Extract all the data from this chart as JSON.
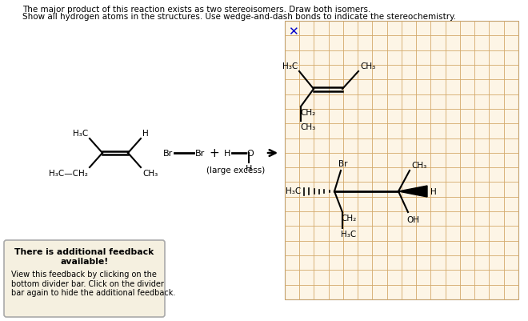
{
  "title_line1": "The major product of this reaction exists as two stereoisomers. Draw both isomers.",
  "title_line2": "Show all hydrogen atoms in the structures. Use wedge-and-dash bonds to indicate the stereochemistry.",
  "bg_color": "#ffffff",
  "grid_color": "#d4a96a",
  "grid_bg": "#fdf5e6",
  "feedback_box": {
    "title": "There is additional feedback\navailable!",
    "body": "View this feedback by clicking on the\nbottom divider bar. Click on the divider\nbar again to hide the additional feedback.",
    "bg": "#f5f0e0",
    "border": "#c8b870"
  }
}
